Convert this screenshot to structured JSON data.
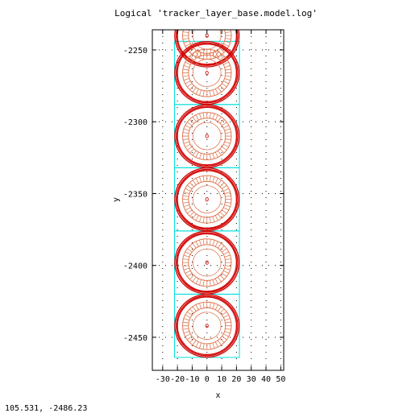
{
  "window": {
    "title": "Logical 'tracker_layer_base.model.log'"
  },
  "status": {
    "cursor_readout": "105.531, -2486.23"
  },
  "colors": {
    "frame": "#000000",
    "grid": "#000000",
    "box": "#00e0e0",
    "ring_outer": "#d10000",
    "ring_inner": "#e07a55",
    "center_marker": "#e02020",
    "background": "#ffffff"
  },
  "chart_data": {
    "type": "scatter",
    "title": "Logical 'tracker_layer_base.model.log'",
    "xlabel": "x",
    "ylabel": "y",
    "xlim": [
      -37,
      52
    ],
    "ylim": [
      -2473,
      -2236
    ],
    "grid": true,
    "x_ticks": [
      -30,
      -20,
      -10,
      0,
      10,
      20,
      30,
      40,
      50
    ],
    "x_tick_labels": [
      "-30",
      "-20",
      "-10",
      "0",
      "10",
      "20",
      "30",
      "40",
      "50"
    ],
    "y_ticks": [
      -2250,
      -2300,
      -2350,
      -2400,
      -2450
    ],
    "y_tick_labels": [
      "-2250",
      "-2300",
      "-2350",
      "-2400",
      "-2450"
    ],
    "boxes": [
      {
        "x0": -22,
        "x1": 22,
        "y0": -2244,
        "y1": -2288
      },
      {
        "x0": -22,
        "x1": 22,
        "y0": -2288,
        "y1": -2332
      },
      {
        "x0": -22,
        "x1": 22,
        "y0": -2332,
        "y1": -2376
      },
      {
        "x0": -22,
        "x1": 22,
        "y0": -2376,
        "y1": -2420
      },
      {
        "x0": -22,
        "x1": 22,
        "y0": -2420,
        "y1": -2464
      }
    ],
    "modules": [
      {
        "cx": 0,
        "cy": -2240
      },
      {
        "cx": 0,
        "cy": -2266
      },
      {
        "cx": 0,
        "cy": -2310
      },
      {
        "cx": 0,
        "cy": -2354
      },
      {
        "cx": 0,
        "cy": -2398
      },
      {
        "cx": 0,
        "cy": -2442
      }
    ],
    "module_radii": {
      "outer": [
        21.8,
        20.8,
        20.0
      ],
      "inner_band": [
        16.5,
        12.5
      ],
      "core": [
        9.5
      ],
      "center": 0.8
    }
  }
}
